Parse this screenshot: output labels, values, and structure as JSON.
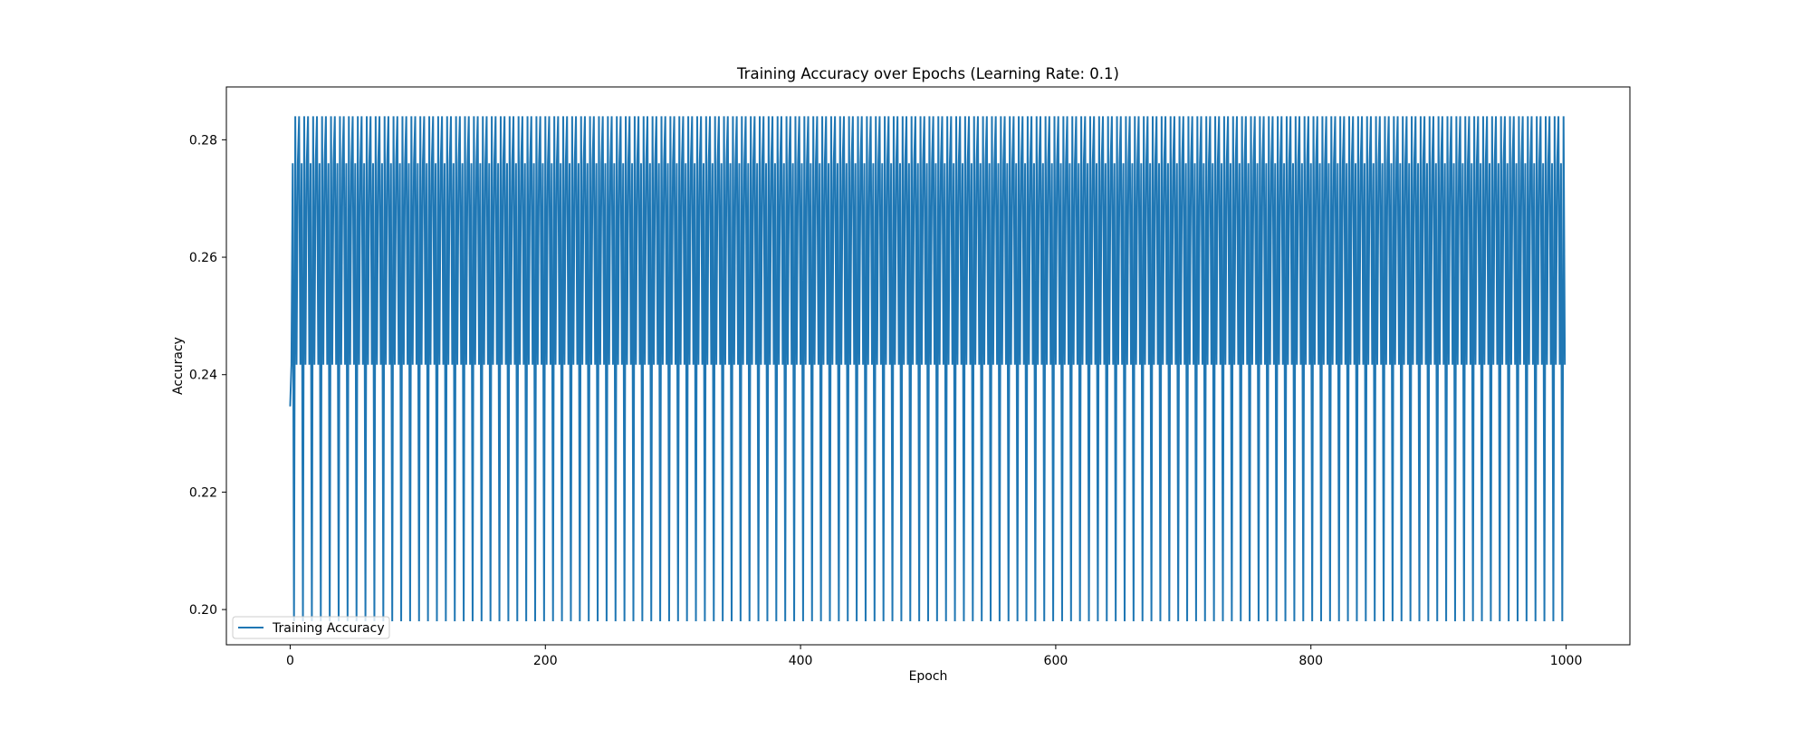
{
  "chart_data": {
    "type": "line",
    "title": "Training Accuracy over Epochs (Learning Rate: 0.1)",
    "xlabel": "Epoch",
    "ylabel": "Accuracy",
    "xlim": [
      -50,
      1050
    ],
    "ylim": [
      0.194,
      0.289
    ],
    "xticks": [
      0,
      200,
      400,
      600,
      800,
      1000
    ],
    "xtick_labels": [
      "0",
      "200",
      "400",
      "600",
      "800",
      "1000"
    ],
    "yticks": [
      0.2,
      0.22,
      0.24,
      0.26,
      0.28
    ],
    "ytick_labels": [
      "0.20",
      "0.22",
      "0.24",
      "0.26",
      "0.28"
    ],
    "grid": false,
    "legend": "lower-left",
    "series": [
      {
        "name": "Training Accuracy",
        "color": "#1f77b4",
        "x_start": 0,
        "x_end": 999,
        "first_value": 0.2346,
        "period": 7,
        "cycle": [
          0.284,
          0.2417,
          0.276,
          0.198,
          0.284,
          0.2417,
          0.276
        ]
      }
    ]
  }
}
